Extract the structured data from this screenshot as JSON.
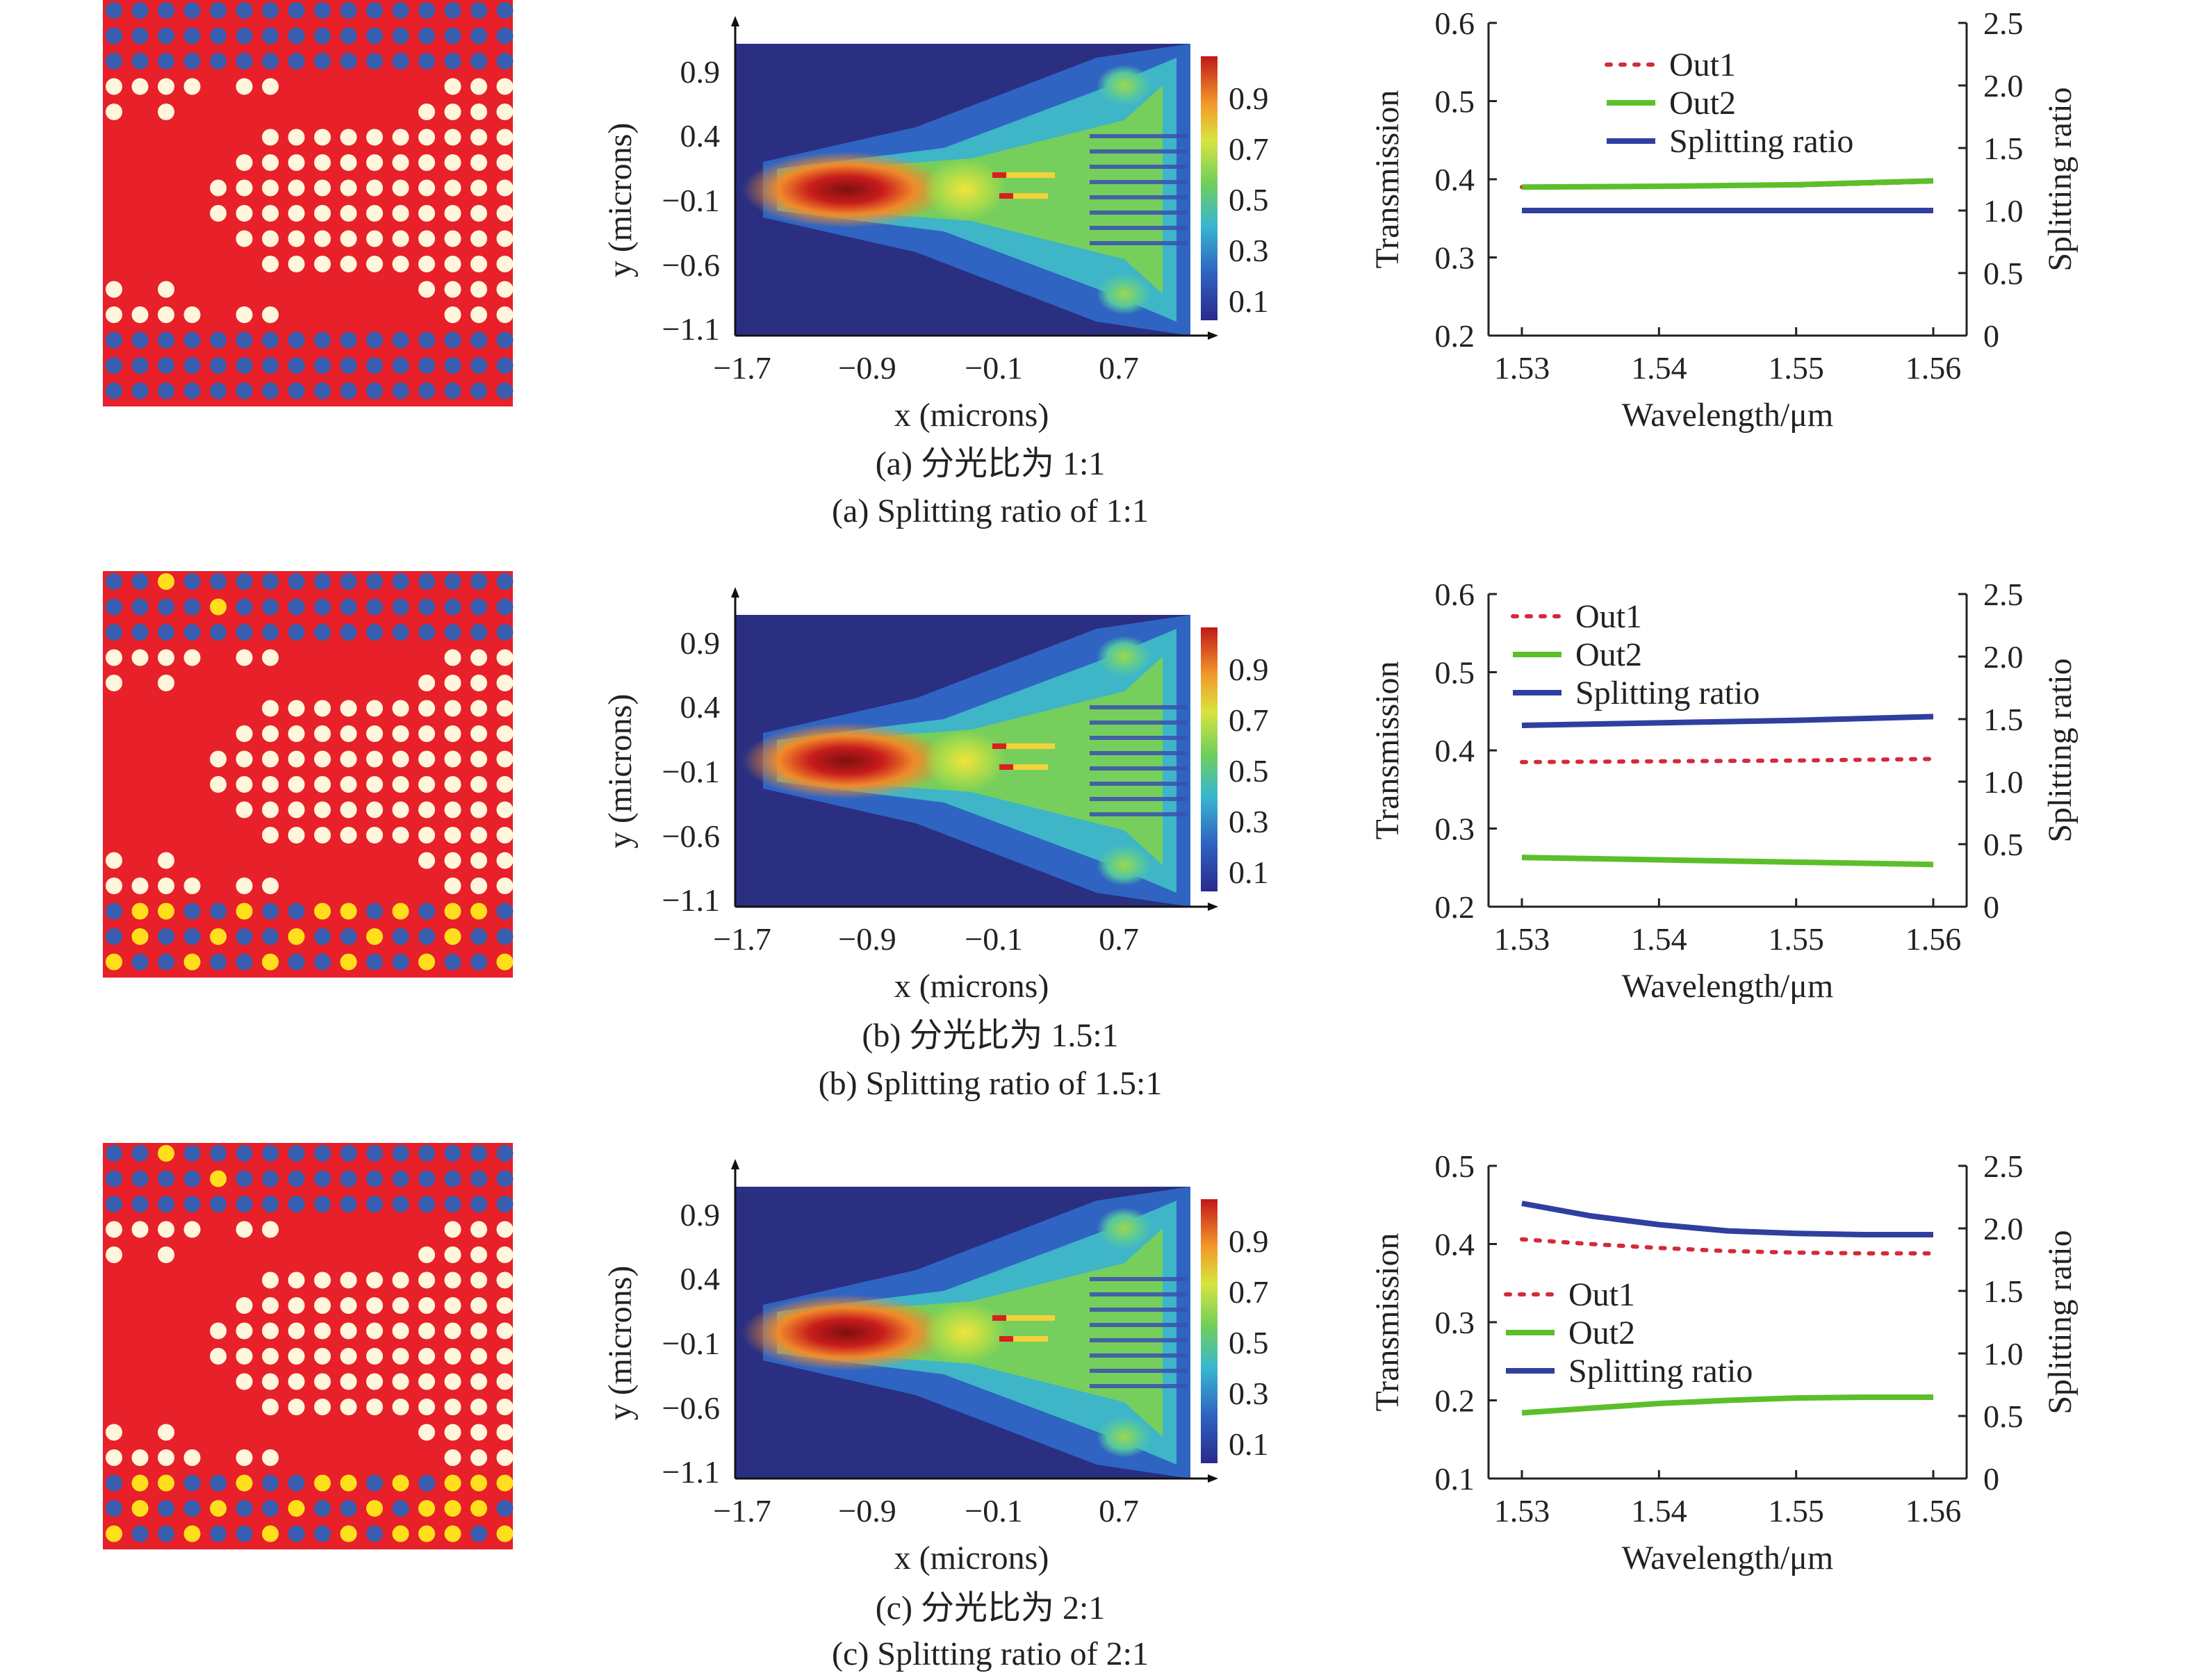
{
  "rows": [
    {
      "caption_cn": "(a) 分光比为 1:1",
      "caption_en": "(a) Splitting ratio of 1:1",
      "field": {
        "xlabel": "x (microns)",
        "ylabel": "y (microns)",
        "xticks": [
          "−1.7",
          "−0.9",
          "−0.1",
          "0.7"
        ],
        "yticks": [
          "0.9",
          "0.4",
          "−0.1",
          "−0.6",
          "−1.1"
        ],
        "cbar": [
          "0.9",
          "0.7",
          "0.5",
          "0.3",
          "0.1"
        ]
      },
      "chart": {
        "ylabel": "Transmission",
        "y2label": "Splitting ratio",
        "xlabel": "Wavelength/μm",
        "xticks": [
          "1.53",
          "1.54",
          "1.55",
          "1.56"
        ],
        "yticks": [
          "0.6",
          "0.5",
          "0.4",
          "0.3",
          "0.2"
        ],
        "y2ticks": [
          "2.5",
          "2.0",
          "1.5",
          "1.0",
          "0.5",
          "0"
        ],
        "legend": [
          "Out1",
          "Out2",
          "Splitting ratio"
        ]
      }
    },
    {
      "caption_cn": "(b) 分光比为 1.5:1",
      "caption_en": "(b) Splitting ratio of 1.5:1",
      "field": {
        "xlabel": "x (microns)",
        "ylabel": "y (microns)",
        "xticks": [
          "−1.7",
          "−0.9",
          "−0.1",
          "0.7"
        ],
        "yticks": [
          "0.9",
          "0.4",
          "−0.1",
          "−0.6",
          "−1.1"
        ],
        "cbar": [
          "0.9",
          "0.7",
          "0.5",
          "0.3",
          "0.1"
        ]
      },
      "chart": {
        "ylabel": "Transmission",
        "y2label": "Splitting ratio",
        "xlabel": "Wavelength/μm",
        "xticks": [
          "1.53",
          "1.54",
          "1.55",
          "1.56"
        ],
        "yticks": [
          "0.6",
          "0.5",
          "0.4",
          "0.3",
          "0.2"
        ],
        "y2ticks": [
          "2.5",
          "2.0",
          "1.5",
          "1.0",
          "0.5",
          "0"
        ],
        "legend": [
          "Out1",
          "Out2",
          "Splitting ratio"
        ]
      }
    },
    {
      "caption_cn": "(c) 分光比为 2:1",
      "caption_en": "(c) Splitting ratio of 2:1",
      "field": {
        "xlabel": "x (microns)",
        "ylabel": "y (microns)",
        "xticks": [
          "−1.7",
          "−0.9",
          "−0.1",
          "0.7"
        ],
        "yticks": [
          "0.9",
          "0.4",
          "−0.1",
          "−0.6",
          "−1.1"
        ],
        "cbar": [
          "0.9",
          "0.7",
          "0.5",
          "0.3",
          "0.1"
        ]
      },
      "chart": {
        "ylabel": "Transmission",
        "y2label": "Splitting ratio",
        "xlabel": "Wavelength/μm",
        "xticks": [
          "1.53",
          "1.54",
          "1.55",
          "1.56"
        ],
        "yticks": [
          "0.5",
          "0.4",
          "0.3",
          "0.2",
          "0.1"
        ],
        "y2ticks": [
          "2.5",
          "2.0",
          "1.5",
          "1.0",
          "0.5",
          "0"
        ],
        "legend": [
          "Out1",
          "Out2",
          "Splitting ratio"
        ]
      }
    }
  ],
  "colors": {
    "background_red": "#e8202a",
    "hole_blue": "#3a5fb0",
    "hole_white": "#fff6dc",
    "hole_yellow": "#ffdf1c",
    "out1": "#d42a3a",
    "out2": "#5cbf2a",
    "ratio": "#2f3fa0"
  },
  "chart_data": [
    {
      "type": "line",
      "panel": "(a)",
      "xlim": [
        1.53,
        1.56
      ],
      "ylim": [
        0.2,
        0.6
      ],
      "y2lim": [
        0,
        2.5
      ],
      "series": [
        {
          "name": "Out1",
          "axis": "left",
          "x": [
            1.53,
            1.54,
            1.55,
            1.56
          ],
          "values": [
            0.39,
            0.391,
            0.392,
            0.397
          ]
        },
        {
          "name": "Out2",
          "axis": "left",
          "x": [
            1.53,
            1.54,
            1.55,
            1.56
          ],
          "values": [
            0.39,
            0.391,
            0.393,
            0.398
          ]
        },
        {
          "name": "Splitting ratio",
          "axis": "right",
          "x": [
            1.53,
            1.54,
            1.55,
            1.56
          ],
          "values": [
            1.0,
            1.0,
            1.0,
            1.0
          ]
        }
      ]
    },
    {
      "type": "line",
      "panel": "(b)",
      "xlim": [
        1.53,
        1.56
      ],
      "ylim": [
        0.2,
        0.6
      ],
      "y2lim": [
        0,
        2.5
      ],
      "series": [
        {
          "name": "Out1",
          "axis": "left",
          "x": [
            1.53,
            1.54,
            1.55,
            1.56
          ],
          "values": [
            0.385,
            0.386,
            0.387,
            0.389
          ]
        },
        {
          "name": "Out2",
          "axis": "left",
          "x": [
            1.53,
            1.54,
            1.55,
            1.56
          ],
          "values": [
            0.263,
            0.26,
            0.257,
            0.254
          ]
        },
        {
          "name": "Splitting ratio",
          "axis": "right",
          "x": [
            1.53,
            1.54,
            1.55,
            1.56
          ],
          "values": [
            1.45,
            1.47,
            1.49,
            1.52
          ]
        }
      ]
    },
    {
      "type": "line",
      "panel": "(c)",
      "xlim": [
        1.53,
        1.56
      ],
      "ylim": [
        0.1,
        0.5
      ],
      "y2lim": [
        0,
        2.5
      ],
      "series": [
        {
          "name": "Out1",
          "axis": "left",
          "x": [
            1.53,
            1.535,
            1.54,
            1.545,
            1.55,
            1.555,
            1.56
          ],
          "values": [
            0.406,
            0.4,
            0.395,
            0.391,
            0.389,
            0.388,
            0.388
          ]
        },
        {
          "name": "Out2",
          "axis": "left",
          "x": [
            1.53,
            1.535,
            1.54,
            1.545,
            1.55,
            1.555,
            1.56
          ],
          "values": [
            0.184,
            0.19,
            0.196,
            0.2,
            0.203,
            0.204,
            0.204
          ]
        },
        {
          "name": "Splitting ratio",
          "axis": "right",
          "x": [
            1.53,
            1.535,
            1.54,
            1.545,
            1.55,
            1.555,
            1.56
          ],
          "values": [
            2.2,
            2.1,
            2.03,
            1.98,
            1.96,
            1.95,
            1.95
          ]
        }
      ]
    }
  ]
}
